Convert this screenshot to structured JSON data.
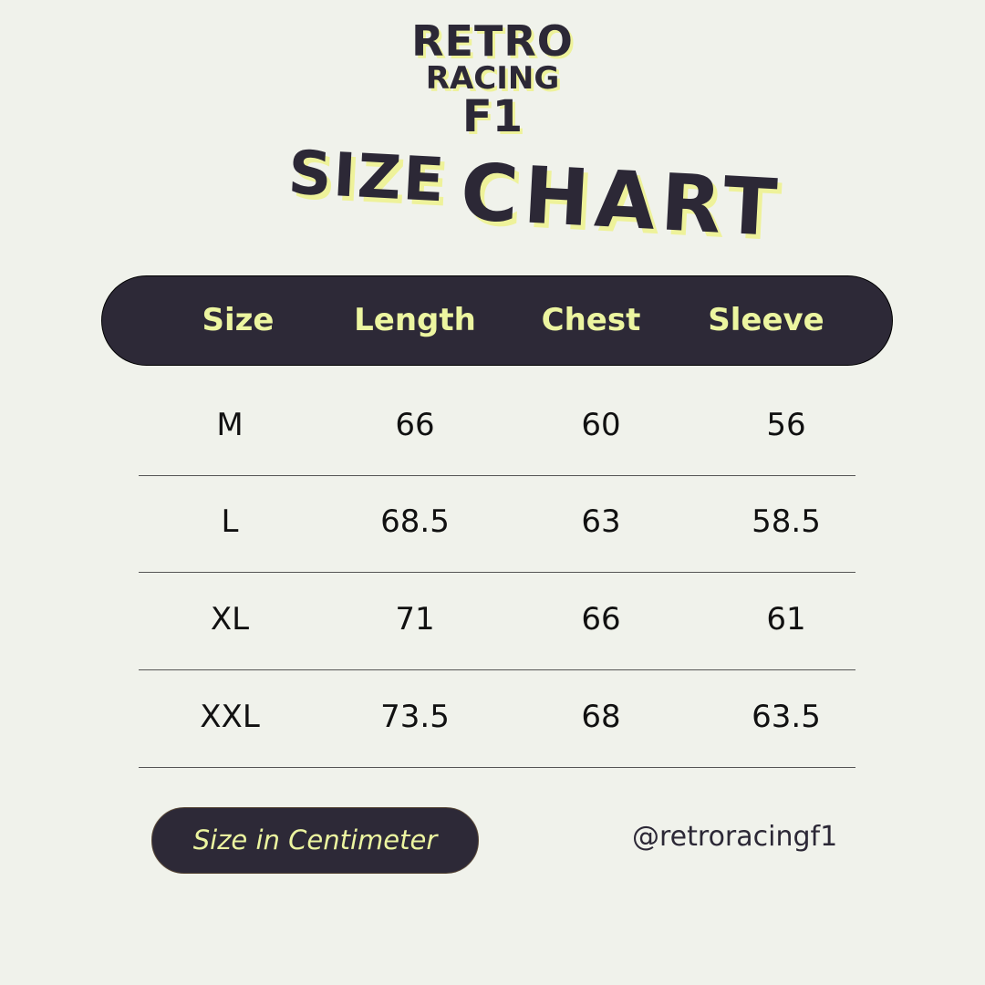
{
  "logo": {
    "line1": "RETRO",
    "line2": "RACING",
    "line3": "F1"
  },
  "title": {
    "word1": "SIZE",
    "word2": "CHART"
  },
  "colors": {
    "background": "#f0f2eb",
    "dark": "#2d2937",
    "accent": "#ecf5a0"
  },
  "table": {
    "headers": [
      "Size",
      "Length",
      "Chest",
      "Sleeve"
    ],
    "rows": [
      [
        "M",
        "66",
        "60",
        "56"
      ],
      [
        "L",
        "68.5",
        "63",
        "58.5"
      ],
      [
        "XL",
        "71",
        "66",
        "61"
      ],
      [
        "XXL",
        "73.5",
        "68",
        "63.5"
      ]
    ]
  },
  "footer": {
    "unit_note": "Size in Centimeter",
    "handle": "@retroracingf1"
  }
}
